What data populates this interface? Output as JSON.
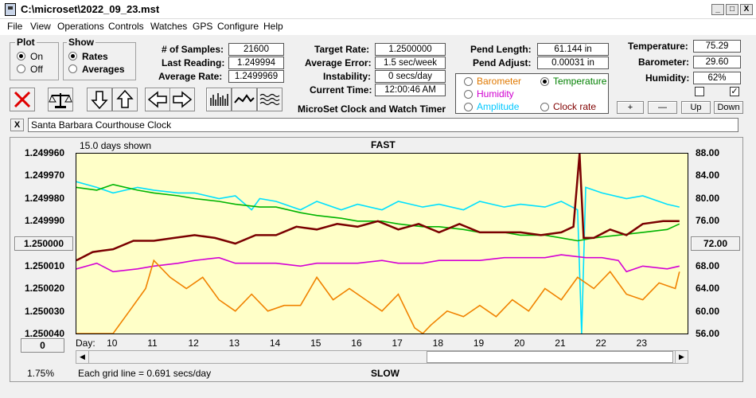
{
  "window": {
    "title": "C:\\microset\\2022_09_23.mst",
    "min": "_",
    "max": "□",
    "close": "X"
  },
  "menu": [
    "File",
    "View",
    "Operations",
    "Controls",
    "Watches",
    "GPS",
    "Configure",
    "Help"
  ],
  "plot_group": {
    "title": "Plot",
    "options": [
      {
        "label": "On",
        "selected": true
      },
      {
        "label": "Off",
        "selected": false
      }
    ]
  },
  "show_group": {
    "title": "Show",
    "options": [
      {
        "label": "Rates",
        "selected": true
      },
      {
        "label": "Averages",
        "selected": false
      }
    ]
  },
  "stats": {
    "samples_label": "# of Samples:",
    "samples": "21600",
    "last_reading_label": "Last Reading:",
    "last_reading": "1.249994",
    "avg_rate_label": "Average Rate:",
    "avg_rate": "1.2499969",
    "target_rate_label": "Target Rate:",
    "target_rate": "1.2500000",
    "avg_error_label": "Average Error:",
    "avg_error": "1.5 sec/week",
    "instability_label": "Instability:",
    "instability": "0 secs/day",
    "current_time_label": "Current Time:",
    "current_time": "12:00:46 AM",
    "pend_length_label": "Pend Length:",
    "pend_length": "61.144 in",
    "pend_adjust_label": "Pend Adjust:",
    "pend_adjust": "0.00031 in",
    "temperature_label": "Temperature:",
    "temperature": "75.29",
    "barometer_label": "Barometer:",
    "barometer": "29.60",
    "humidity_label": "Humidity:",
    "humidity": "62%"
  },
  "app_caption": "MicroSet Clock and Watch Timer",
  "overlay": {
    "options": [
      {
        "label": "Barometer",
        "color": "#e07800",
        "selected": false
      },
      {
        "label": "Temperature",
        "color": "#008000",
        "selected": true
      },
      {
        "label": "Humidity",
        "color": "#d000d0",
        "selected": false
      },
      {
        "label": "Amplitude",
        "color": "#00c8ff",
        "selected": false
      },
      {
        "label": "Clock rate",
        "color": "#800000",
        "selected": false
      }
    ]
  },
  "scale_buttons": [
    "+",
    "—",
    "Up",
    "Down"
  ],
  "checkboxes": [
    {
      "checked": false
    },
    {
      "checked": true
    }
  ],
  "watch_name": "Santa Barbara Courthouse Clock",
  "close_x": "X",
  "chart": {
    "days_shown": "15.0 days shown",
    "top_label": "FAST",
    "bottom_label": "SLOW",
    "grid_note": "Each grid line = 0.691 secs/day",
    "percent": "1.75%",
    "day_label": "Day:",
    "left_button": "1.250000",
    "right_button": "72.00",
    "bottom_button": "0"
  },
  "chart_data": {
    "type": "line",
    "xlabel": "Day:",
    "x_ticks": [
      "10",
      "11",
      "12",
      "13",
      "14",
      "15",
      "16",
      "17",
      "18",
      "19",
      "20",
      "21",
      "22",
      "23"
    ],
    "y_left_ticks": [
      "1.249960",
      "1.249970",
      "1.249980",
      "1.249990",
      "1.250000",
      "1.250010",
      "1.250020",
      "1.250030",
      "1.250040"
    ],
    "y_right_ticks": [
      "88.00",
      "84.00",
      "80.00",
      "76.00",
      "72.00",
      "68.00",
      "64.00",
      "60.00",
      "56.00"
    ],
    "ylim_left": [
      1.24996,
      1.25004
    ],
    "ylim_right": [
      56,
      88
    ],
    "xlim": [
      9.1,
      24.1
    ],
    "series": [
      {
        "color": "#00e0ff",
        "x": [
          9.1,
          9.6,
          10.0,
          10.6,
          11.0,
          11.6,
          12.0,
          12.6,
          13.0,
          13.4,
          13.6,
          14.0,
          14.6,
          15.0,
          15.6,
          16.0,
          16.6,
          17.0,
          17.6,
          18.0,
          18.6,
          19.0,
          19.6,
          20.0,
          20.6,
          21.0,
          21.4,
          21.5,
          21.6,
          22.0,
          22.6,
          23.0,
          23.6,
          23.9
        ],
        "y": [
          83.0,
          82.0,
          81.0,
          82.0,
          81.5,
          81.0,
          81.0,
          80.0,
          80.5,
          78.0,
          80.0,
          79.5,
          78.0,
          79.5,
          78.0,
          79.0,
          78.0,
          79.5,
          78.5,
          79.0,
          78.0,
          79.5,
          78.5,
          79.0,
          78.5,
          79.5,
          78.0,
          56.0,
          82.0,
          81.0,
          80.0,
          80.5,
          79.0,
          78.5
        ]
      },
      {
        "color": "#00b400",
        "x": [
          9.1,
          9.6,
          10.0,
          10.6,
          11.0,
          11.6,
          12.0,
          12.6,
          13.0,
          13.6,
          14.0,
          14.6,
          15.0,
          15.6,
          16.0,
          16.6,
          17.0,
          17.6,
          18.0,
          18.6,
          19.0,
          19.6,
          20.0,
          20.6,
          21.0,
          21.4,
          21.8,
          22.4,
          23.0,
          23.6,
          23.9
        ],
        "y": [
          82.0,
          81.5,
          82.5,
          81.5,
          81.0,
          80.5,
          80.0,
          79.5,
          79.0,
          78.5,
          78.5,
          77.5,
          77.0,
          76.5,
          76.0,
          76.0,
          75.5,
          75.0,
          75.0,
          74.5,
          74.0,
          74.0,
          73.5,
          73.5,
          73.0,
          72.5,
          73.0,
          73.5,
          74.0,
          74.5,
          75.5
        ]
      },
      {
        "color": "#7a0000",
        "x": [
          9.1,
          9.5,
          10.0,
          10.5,
          11.0,
          11.5,
          12.0,
          12.5,
          13.0,
          13.5,
          14.0,
          14.5,
          15.0,
          15.5,
          16.0,
          16.5,
          17.0,
          17.5,
          18.0,
          18.5,
          19.0,
          19.5,
          20.0,
          20.5,
          21.0,
          21.3,
          21.45,
          21.55,
          21.8,
          22.2,
          22.6,
          23.0,
          23.5,
          23.9
        ],
        "y": [
          69.0,
          70.5,
          71.0,
          72.5,
          72.5,
          73.0,
          73.5,
          73.0,
          72.0,
          73.5,
          73.5,
          75.0,
          74.5,
          75.5,
          75.0,
          76.0,
          74.5,
          75.5,
          74.0,
          75.5,
          74.0,
          74.0,
          74.0,
          73.5,
          74.0,
          75.0,
          88.0,
          73.0,
          73.0,
          74.5,
          73.5,
          75.5,
          76.0,
          76.0
        ]
      },
      {
        "color": "#d400d4",
        "x": [
          9.1,
          9.6,
          10.0,
          10.6,
          11.0,
          11.6,
          12.0,
          12.6,
          13.0,
          13.6,
          14.0,
          14.6,
          15.0,
          15.6,
          16.0,
          16.6,
          17.0,
          17.6,
          18.0,
          18.6,
          19.0,
          19.6,
          20.0,
          20.6,
          21.0,
          21.6,
          22.0,
          22.4,
          22.6,
          23.0,
          23.6,
          23.9
        ],
        "y": [
          67.5,
          68.5,
          67.0,
          67.5,
          68.0,
          68.5,
          69.0,
          69.5,
          68.5,
          68.5,
          68.5,
          68.0,
          68.5,
          68.5,
          68.5,
          69.0,
          68.5,
          68.5,
          69.0,
          69.0,
          69.0,
          69.5,
          69.5,
          69.5,
          70.0,
          69.5,
          69.5,
          69.0,
          67.0,
          68.0,
          67.5,
          68.0
        ]
      },
      {
        "color": "#f08200",
        "x": [
          9.1,
          9.6,
          10.0,
          10.4,
          10.8,
          11.0,
          11.4,
          11.8,
          12.2,
          12.6,
          13.0,
          13.4,
          13.8,
          14.2,
          14.6,
          15.0,
          15.4,
          15.8,
          16.2,
          16.6,
          17.0,
          17.4,
          17.6,
          17.8,
          18.2,
          18.6,
          19.0,
          19.4,
          19.8,
          20.2,
          20.6,
          21.0,
          21.4,
          21.8,
          22.2,
          22.6,
          23.0,
          23.4,
          23.8,
          23.9
        ],
        "y": [
          56.0,
          56.0,
          56.0,
          60.0,
          64.0,
          69.0,
          66.0,
          64.0,
          66.0,
          62.0,
          60.0,
          63.0,
          60.0,
          61.0,
          61.0,
          66.0,
          62.0,
          64.0,
          62.0,
          60.0,
          63.0,
          57.0,
          56.0,
          57.5,
          60.0,
          59.0,
          61.0,
          59.0,
          62.0,
          60.0,
          64.0,
          62.0,
          66.0,
          64.0,
          67.0,
          63.0,
          62.0,
          65.0,
          64.0,
          67.0
        ]
      }
    ]
  }
}
